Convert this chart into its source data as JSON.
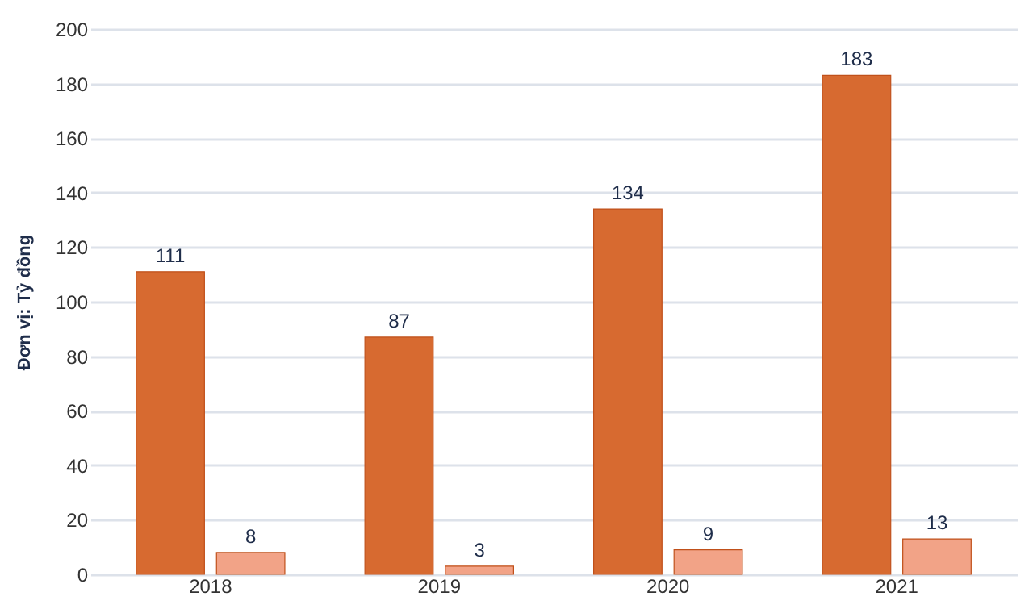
{
  "chart_data": {
    "type": "bar",
    "ylabel": "Đơn vị: Tỷ đồng",
    "categories": [
      "2018",
      "2019",
      "2020",
      "2021"
    ],
    "series": [
      {
        "color": "#d76a30",
        "values": [
          111,
          87,
          134,
          183
        ]
      },
      {
        "color": "#f2a387",
        "values": [
          8,
          3,
          9,
          13
        ]
      }
    ],
    "ylim": [
      0,
      200
    ],
    "yticks": [
      0,
      20,
      40,
      60,
      80,
      100,
      120,
      140,
      160,
      180,
      200
    ],
    "grid": "y",
    "data_labels": true,
    "legend": false
  }
}
